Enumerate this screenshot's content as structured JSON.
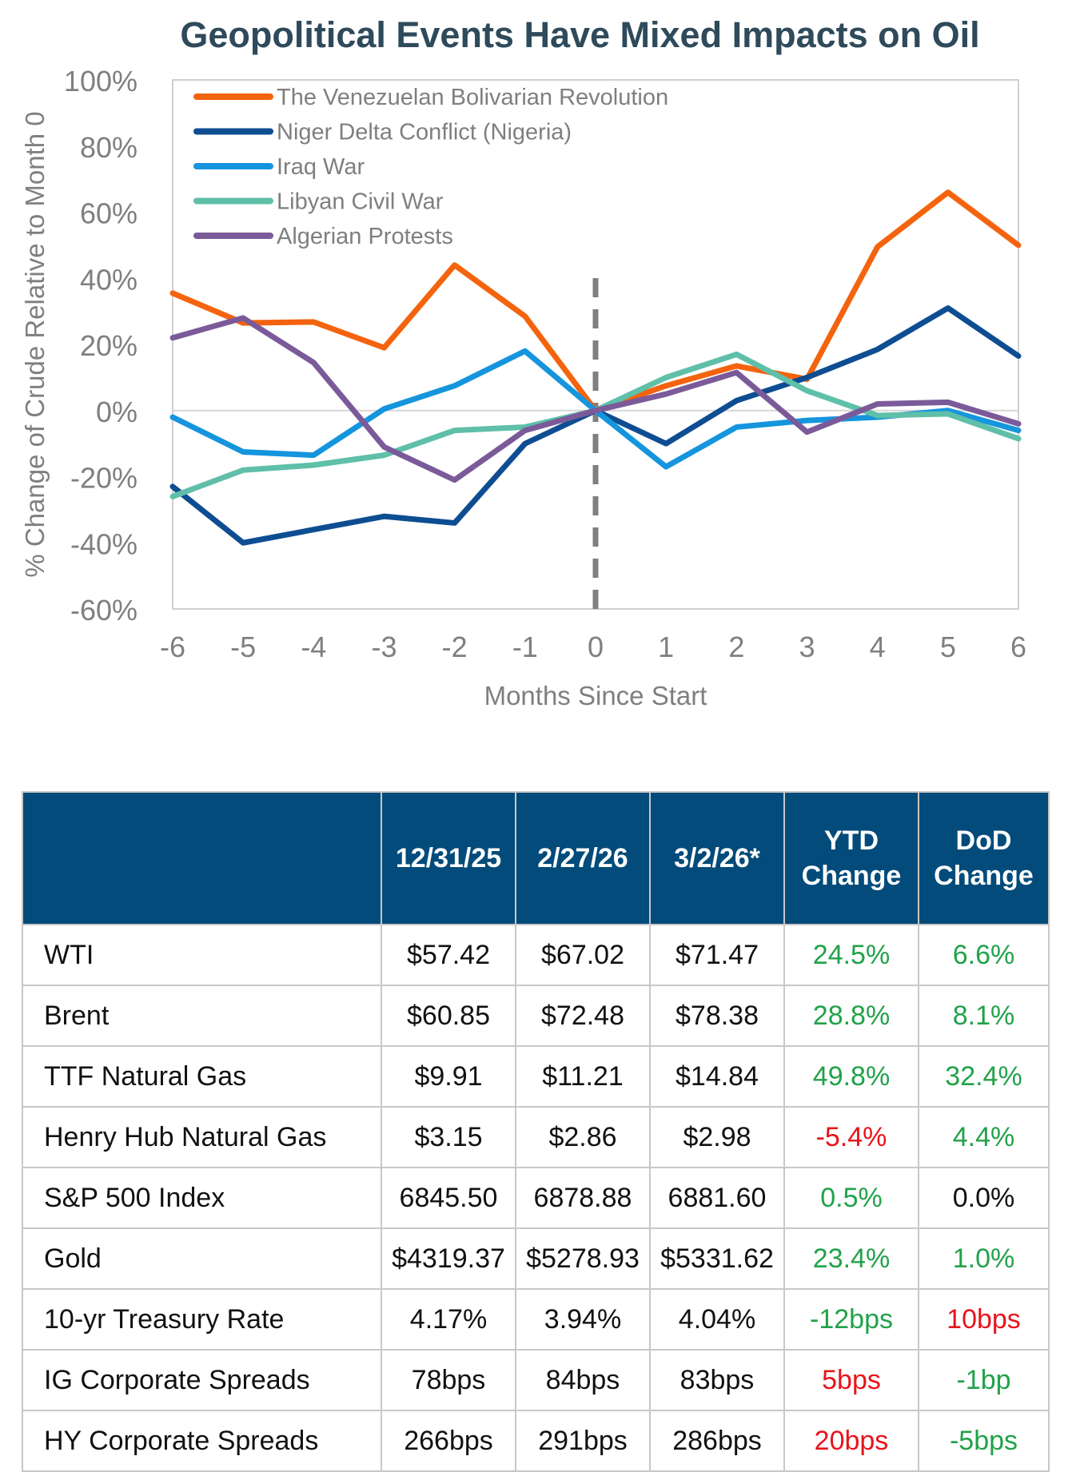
{
  "chart_data": {
    "type": "line",
    "title": "Geopolitical Events Have Mixed Impacts on Oil",
    "xlabel": "Months Since Start",
    "ylabel": "% Change of Crude Relative to Month 0",
    "x": [
      -6,
      -5,
      -4,
      -3,
      -2,
      -1,
      0,
      1,
      2,
      3,
      4,
      5,
      6
    ],
    "x_tick_labels": [
      "-6",
      "-5",
      "-4",
      "-3",
      "-2",
      "-1",
      "0",
      "1",
      "2",
      "3",
      "4",
      "5",
      "6"
    ],
    "ylim": [
      -60,
      100
    ],
    "y_ticks": [
      -60,
      -40,
      -20,
      0,
      20,
      40,
      60,
      80,
      100
    ],
    "y_tick_labels": [
      "-60%",
      "-40%",
      "-20%",
      "0%",
      "20%",
      "40%",
      "60%",
      "80%",
      "100%"
    ],
    "reference_line": {
      "x": 0,
      "style": "dashed",
      "color": "#7f7f7f"
    },
    "legend_position": "top-left",
    "grid": false,
    "series": [
      {
        "name": "The Venezuelan Bolivarian Revolution",
        "color": "#f4630d",
        "values": [
          35.5,
          26.5,
          26.8,
          19,
          44,
          28.5,
          0,
          7.5,
          13.5,
          9.5,
          49.5,
          66,
          50
        ]
      },
      {
        "name": "Niger Delta Conflict (Nigeria)",
        "color": "#0e4d92",
        "values": [
          -23,
          -40,
          -36,
          -32,
          -34,
          -10,
          0,
          -10,
          3,
          10,
          18.5,
          31,
          16.5
        ]
      },
      {
        "name": "Iraq War",
        "color": "#1595dd",
        "values": [
          -2,
          -12.5,
          -13.5,
          0.5,
          7.5,
          18,
          0,
          -17,
          -5,
          -3,
          -2,
          0,
          -6
        ]
      },
      {
        "name": "Libyan Civil War",
        "color": "#5fbfa8",
        "values": [
          -26,
          -18,
          -16.5,
          -13.5,
          -6,
          -5,
          0,
          10,
          17,
          6,
          -1.5,
          -1,
          -8.5
        ]
      },
      {
        "name": "Algerian Protests",
        "color": "#7b5a9a",
        "values": [
          22,
          28,
          14.5,
          -11,
          -21,
          -6,
          0,
          5,
          11.5,
          -6.5,
          2,
          2.5,
          -4
        ]
      }
    ]
  },
  "table": {
    "headers": [
      "",
      "12/31/25",
      "2/27/26",
      "3/2/26*",
      "YTD\nChange",
      "DoD\nChange"
    ],
    "rows": [
      {
        "label": "WTI",
        "values": [
          "$57.42",
          "$67.02",
          "$71.47"
        ],
        "ytd": "24.5%",
        "ytd_status": "pos",
        "dod": "6.6%",
        "dod_status": "pos"
      },
      {
        "label": "Brent",
        "values": [
          "$60.85",
          "$72.48",
          "$78.38"
        ],
        "ytd": "28.8%",
        "ytd_status": "pos",
        "dod": "8.1%",
        "dod_status": "pos"
      },
      {
        "label": "TTF Natural Gas",
        "values": [
          "$9.91",
          "$11.21",
          "$14.84"
        ],
        "ytd": "49.8%",
        "ytd_status": "pos",
        "dod": "32.4%",
        "dod_status": "pos"
      },
      {
        "label": "Henry Hub Natural Gas",
        "values": [
          "$3.15",
          "$2.86",
          "$2.98"
        ],
        "ytd": "-5.4%",
        "ytd_status": "neg",
        "dod": "4.4%",
        "dod_status": "pos"
      },
      {
        "label": "S&P 500 Index",
        "values": [
          "6845.50",
          "6878.88",
          "6881.60"
        ],
        "ytd": "0.5%",
        "ytd_status": "pos",
        "dod": "0.0%",
        "dod_status": "neu"
      },
      {
        "label": "Gold",
        "values": [
          "$4319.37",
          "$5278.93",
          "$5331.62"
        ],
        "ytd": "23.4%",
        "ytd_status": "pos",
        "dod": "1.0%",
        "dod_status": "pos"
      },
      {
        "label": "10-yr Treasury Rate",
        "values": [
          "4.17%",
          "3.94%",
          "4.04%"
        ],
        "ytd": "-12bps",
        "ytd_status": "pos",
        "dod": "10bps",
        "dod_status": "neg"
      },
      {
        "label": "IG Corporate Spreads",
        "values": [
          "78bps",
          "84bps",
          "83bps"
        ],
        "ytd": "5bps",
        "ytd_status": "neg",
        "dod": "-1bp",
        "dod_status": "pos"
      },
      {
        "label": "HY Corporate Spreads",
        "values": [
          "266bps",
          "291bps",
          "286bps"
        ],
        "ytd": "20bps",
        "ytd_status": "neg",
        "dod": "-5bps",
        "dod_status": "pos"
      }
    ],
    "colors": {
      "header_bg": "#024b7a",
      "positive": "#22a24a",
      "negative": "#e8141b"
    }
  }
}
